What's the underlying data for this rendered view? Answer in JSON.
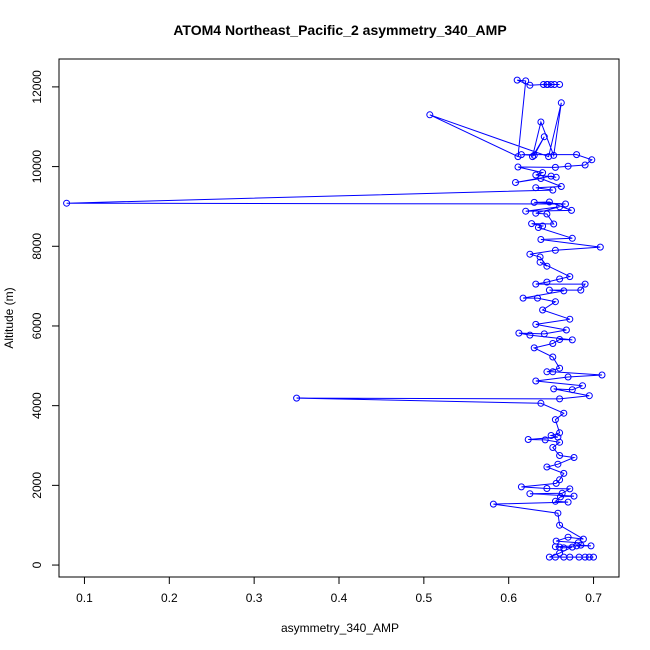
{
  "chart_data": {
    "type": "line",
    "title": "ATOM4 Northeast_Pacific_2 asymmetry_340_AMP",
    "xlabel": "asymmetry_340_AMP",
    "ylabel": "Altitude (m)",
    "xlim": [
      0.07,
      0.73
    ],
    "ylim": [
      -300,
      12700
    ],
    "xticks": [
      0.1,
      0.2,
      0.3,
      0.4,
      0.5,
      0.6,
      0.7
    ],
    "yticks": [
      0,
      2000,
      4000,
      6000,
      8000,
      10000,
      12000
    ],
    "grid": false,
    "series": [
      {
        "color": "#0000ff",
        "marker": "open-circle",
        "points": [
          [
            0.646,
            12060
          ],
          [
            0.645,
            12060
          ],
          [
            0.65,
            12060
          ],
          [
            0.654,
            12060
          ],
          [
            0.66,
            12060
          ],
          [
            0.641,
            12060
          ],
          [
            0.625,
            12040
          ],
          [
            0.61,
            12170
          ],
          [
            0.62,
            12150
          ],
          [
            0.611,
            10250
          ],
          [
            0.507,
            11300
          ],
          [
            0.647,
            10250
          ],
          [
            0.662,
            11600
          ],
          [
            0.653,
            10280
          ],
          [
            0.638,
            11120
          ],
          [
            0.628,
            10250
          ],
          [
            0.642,
            10750
          ],
          [
            0.63,
            10280
          ],
          [
            0.615,
            10300
          ],
          [
            0.68,
            10300
          ],
          [
            0.698,
            10170
          ],
          [
            0.69,
            10040
          ],
          [
            0.67,
            10010
          ],
          [
            0.655,
            9980
          ],
          [
            0.611,
            9990
          ],
          [
            0.64,
            9850
          ],
          [
            0.632,
            9790
          ],
          [
            0.656,
            9730
          ],
          [
            0.65,
            9760
          ],
          [
            0.608,
            9600
          ],
          [
            0.638,
            9700
          ],
          [
            0.662,
            9500
          ],
          [
            0.632,
            9470
          ],
          [
            0.652,
            9410
          ],
          [
            0.079,
            9080
          ],
          [
            0.667,
            9060
          ],
          [
            0.63,
            9100
          ],
          [
            0.648,
            9110
          ],
          [
            0.674,
            8900
          ],
          [
            0.62,
            8880
          ],
          [
            0.66,
            8990
          ],
          [
            0.632,
            8830
          ],
          [
            0.645,
            8810
          ],
          [
            0.653,
            8560
          ],
          [
            0.627,
            8570
          ],
          [
            0.64,
            8510
          ],
          [
            0.635,
            8470
          ],
          [
            0.675,
            8200
          ],
          [
            0.638,
            8170
          ],
          [
            0.708,
            7980
          ],
          [
            0.655,
            7900
          ],
          [
            0.625,
            7800
          ],
          [
            0.637,
            7730
          ],
          [
            0.645,
            7500
          ],
          [
            0.637,
            7600
          ],
          [
            0.672,
            7240
          ],
          [
            0.66,
            7180
          ],
          [
            0.645,
            7100
          ],
          [
            0.632,
            7050
          ],
          [
            0.69,
            7050
          ],
          [
            0.685,
            6900
          ],
          [
            0.648,
            6900
          ],
          [
            0.665,
            6880
          ],
          [
            0.617,
            6700
          ],
          [
            0.634,
            6700
          ],
          [
            0.655,
            6610
          ],
          [
            0.64,
            6400
          ],
          [
            0.672,
            6170
          ],
          [
            0.632,
            6040
          ],
          [
            0.668,
            5900
          ],
          [
            0.642,
            5800
          ],
          [
            0.612,
            5820
          ],
          [
            0.625,
            5770
          ],
          [
            0.675,
            5650
          ],
          [
            0.66,
            5660
          ],
          [
            0.652,
            5560
          ],
          [
            0.63,
            5450
          ],
          [
            0.652,
            5220
          ],
          [
            0.66,
            4940
          ],
          [
            0.645,
            4850
          ],
          [
            0.652,
            4850
          ],
          [
            0.71,
            4770
          ],
          [
            0.67,
            4720
          ],
          [
            0.632,
            4620
          ],
          [
            0.687,
            4500
          ],
          [
            0.675,
            4400
          ],
          [
            0.653,
            4420
          ],
          [
            0.695,
            4250
          ],
          [
            0.66,
            4170
          ],
          [
            0.35,
            4190
          ],
          [
            0.638,
            4060
          ],
          [
            0.665,
            3810
          ],
          [
            0.655,
            3650
          ],
          [
            0.66,
            3320
          ],
          [
            0.65,
            3250
          ],
          [
            0.658,
            3210
          ],
          [
            0.623,
            3150
          ],
          [
            0.643,
            3140
          ],
          [
            0.66,
            3080
          ],
          [
            0.652,
            2950
          ],
          [
            0.66,
            2750
          ],
          [
            0.677,
            2700
          ],
          [
            0.658,
            2530
          ],
          [
            0.645,
            2460
          ],
          [
            0.665,
            2300
          ],
          [
            0.66,
            2140
          ],
          [
            0.656,
            2050
          ],
          [
            0.615,
            1960
          ],
          [
            0.645,
            1920
          ],
          [
            0.672,
            1910
          ],
          [
            0.663,
            1800
          ],
          [
            0.625,
            1790
          ],
          [
            0.677,
            1730
          ],
          [
            0.661,
            1710
          ],
          [
            0.655,
            1600
          ],
          [
            0.67,
            1580
          ],
          [
            0.582,
            1530
          ],
          [
            0.658,
            1300
          ],
          [
            0.66,
            1000
          ],
          [
            0.688,
            650
          ],
          [
            0.67,
            700
          ],
          [
            0.656,
            600
          ],
          [
            0.682,
            560
          ],
          [
            0.685,
            500
          ],
          [
            0.697,
            480
          ],
          [
            0.68,
            480
          ],
          [
            0.655,
            460
          ],
          [
            0.66,
            450
          ],
          [
            0.665,
            430
          ],
          [
            0.675,
            450
          ],
          [
            0.66,
            300
          ],
          [
            0.648,
            200
          ],
          [
            0.655,
            200
          ],
          [
            0.665,
            200
          ],
          [
            0.672,
            200
          ],
          [
            0.683,
            200
          ],
          [
            0.69,
            200
          ],
          [
            0.695,
            200
          ],
          [
            0.7,
            200
          ]
        ]
      }
    ]
  }
}
